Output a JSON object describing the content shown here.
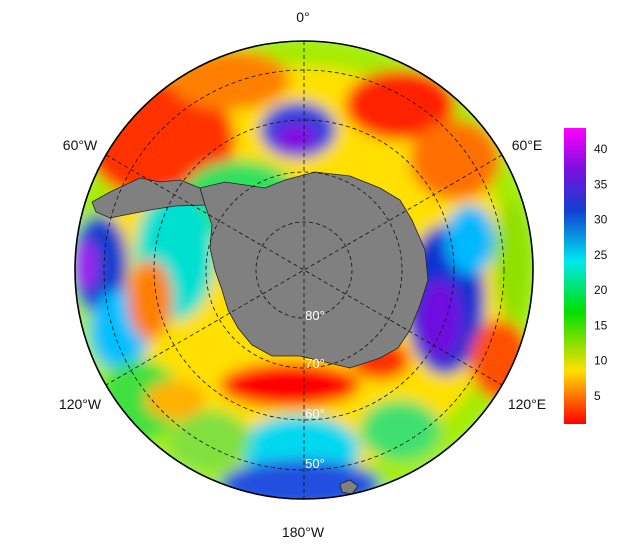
{
  "map": {
    "projection": "south polar stereographic",
    "longitude_labels": {
      "top": "0°",
      "upper_left": "60°W",
      "upper_right": "60°E",
      "lower_left": "120°W",
      "lower_right": "120°E",
      "bottom": "180°W"
    },
    "latitude_labels": [
      "80°",
      "70°",
      "60°",
      "50°"
    ],
    "land_color": "#808080",
    "graticule_style": "dashed"
  },
  "colorbar": {
    "colormap": "red-yellow-green-cyan-blue-purple-magenta",
    "range": [
      1,
      43
    ],
    "ticks": [
      "5",
      "10",
      "15",
      "20",
      "25",
      "30",
      "35",
      "40"
    ],
    "tick_values": [
      5,
      10,
      15,
      20,
      25,
      30,
      35,
      40
    ]
  },
  "colors": {
    "red": "#ff0000",
    "yellow": "#ffe000",
    "green": "#00e000",
    "cyan": "#00e8f0",
    "blue": "#1040d0",
    "purple": "#7a10e0",
    "magenta": "#ff00ff"
  }
}
